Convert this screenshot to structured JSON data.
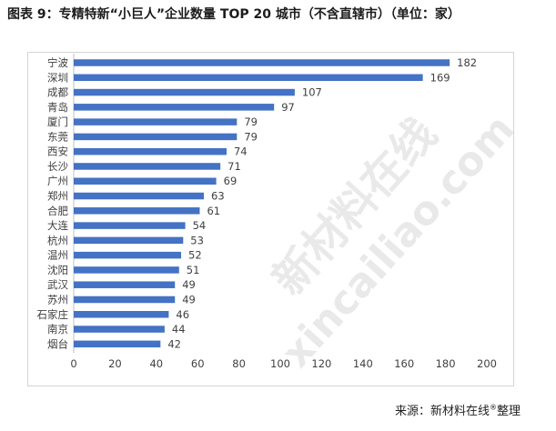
{
  "title": "图表 9：专精特新“小巨人”企业数量 TOP 20 城市（不含直辖市）（单位：家）",
  "source": {
    "text": "来源：新材料在线",
    "mark": "®",
    "suffix": "整理"
  },
  "watermark": {
    "line1": "新材料在线",
    "line2": "xincailiao.com"
  },
  "colors": {
    "bar": "#4472c4",
    "text": "#404040",
    "grid": "#d9d9d9"
  },
  "chart_data": {
    "type": "bar",
    "orientation": "horizontal",
    "categories": [
      "宁波",
      "深圳",
      "成都",
      "青岛",
      "厦门",
      "东莞",
      "西安",
      "长沙",
      "广州",
      "郑州",
      "合肥",
      "大连",
      "杭州",
      "温州",
      "沈阳",
      "武汉",
      "苏州",
      "石家庄",
      "南京",
      "烟台"
    ],
    "values": [
      182,
      169,
      107,
      97,
      79,
      79,
      74,
      71,
      69,
      63,
      61,
      54,
      53,
      52,
      51,
      49,
      49,
      46,
      44,
      42
    ],
    "xlim": [
      0,
      200
    ],
    "xticks": [
      0,
      20,
      40,
      60,
      80,
      100,
      120,
      140,
      160,
      180,
      200
    ],
    "grid": false,
    "data_labels": true,
    "title": "图表 9：专精特新“小巨人”企业数量 TOP 20 城市（不含直辖市）（单位：家）"
  }
}
